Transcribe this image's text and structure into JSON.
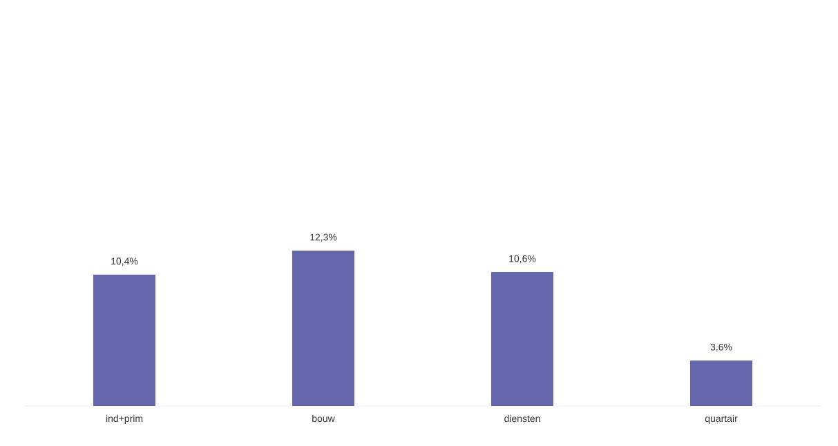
{
  "chart_data": {
    "type": "bar",
    "categories": [
      "ind+prim",
      "bouw",
      "diensten",
      "quartair"
    ],
    "values": [
      10.4,
      12.3,
      10.6,
      3.6
    ],
    "value_labels": [
      "10,4%",
      "12,3%",
      "10,6%",
      "3,6%"
    ],
    "color": "#6667ab"
  }
}
